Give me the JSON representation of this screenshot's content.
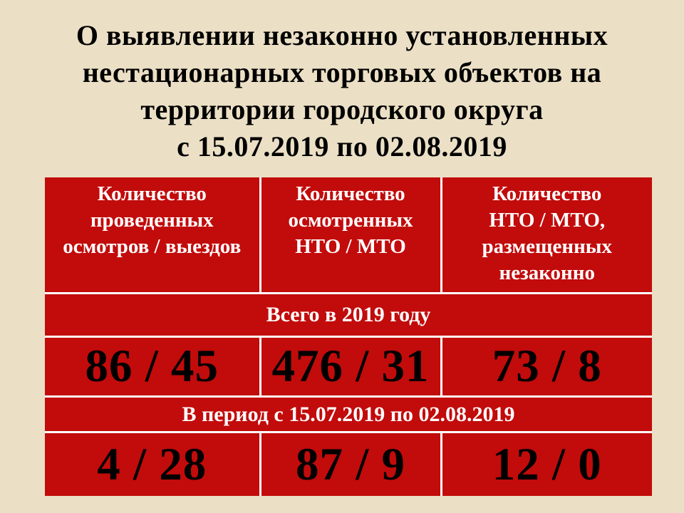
{
  "colors": {
    "background": "#EBDFC5",
    "cell_red": "#C20B0B",
    "divider": "#FFFFFF",
    "header_text": "#FFFFFF",
    "value_text": "#000000",
    "title_text": "#000000"
  },
  "title": "О выявлении незаконно установленных\nнестационарных торговых объектов на\nтерритории городского округа\nс 15.07.2019 по 02.08.2019",
  "table": {
    "headers": [
      "Количество\nпроведенных\nосмотров / выездов",
      "Количество\nосмотренных\nНТО / МТО",
      "Количество\nНТО / МТО,\nразмещенных\nнезаконно"
    ],
    "sections": [
      {
        "label": "Всего в 2019 году",
        "values": [
          "86 / 45",
          "476 / 31",
          "73 / 8"
        ]
      },
      {
        "label": "В период с 15.07.2019 по 02.08.2019",
        "values": [
          "4 / 28",
          "87 / 9",
          "12 / 0"
        ]
      }
    ]
  }
}
